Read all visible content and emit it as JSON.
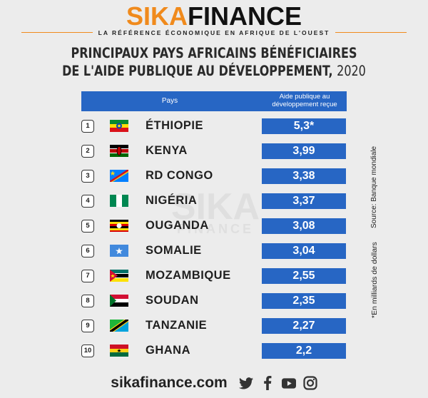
{
  "brand": {
    "name_part1": "SIKA",
    "name_part2": "FINANCE",
    "tagline": "LA RÉFÉRENCE ÉCONOMIQUE EN AFRIQUE DE L'OUEST",
    "accent_color": "#f08a1c"
  },
  "title_line1": "PRINCIPAUX PAYS AFRICAINS BÉNÉFICIAIRES",
  "title_line2": "DE L'AIDE PUBLIQUE AU DÉVELOPPEMENT,",
  "title_year": "2020",
  "table_header": {
    "pays": "Pays",
    "aide_line1": "Aide publique au",
    "aide_line2": "développement reçue"
  },
  "watermark": {
    "main": "SIKA",
    "sub": "FINANCE"
  },
  "source": "Source: Banque mondiale",
  "note": "*En milliards de dollars",
  "footer": {
    "site": "sikafinance.com",
    "icons": [
      "twitter-icon",
      "facebook-icon",
      "youtube-icon",
      "instagram-icon"
    ]
  },
  "colors": {
    "bar": "#2766c4",
    "background": "#ececec"
  },
  "chart_data": {
    "type": "table",
    "title": "PRINCIPAUX PAYS AFRICAINS BÉNÉFICIAIRES DE L'AIDE PUBLIQUE AU DÉVELOPPEMENT, 2020",
    "columns": [
      "Pays",
      "Aide publique au développement reçue"
    ],
    "rows": [
      {
        "rank": "1",
        "country": "ÉTHIOPIE",
        "label": "5,3*",
        "value": 5.3,
        "flag": "ethiopia"
      },
      {
        "rank": "2",
        "country": "KENYA",
        "label": "3,99",
        "value": 3.99,
        "flag": "kenya"
      },
      {
        "rank": "3",
        "country": "RD CONGO",
        "label": "3,38",
        "value": 3.38,
        "flag": "drc"
      },
      {
        "rank": "4",
        "country": "NIGÉRIA",
        "label": "3,37",
        "value": 3.37,
        "flag": "nigeria"
      },
      {
        "rank": "5",
        "country": "OUGANDA",
        "label": "3,08",
        "value": 3.08,
        "flag": "uganda"
      },
      {
        "rank": "6",
        "country": "SOMALIE",
        "label": "3,04",
        "value": 3.04,
        "flag": "somalia"
      },
      {
        "rank": "7",
        "country": "MOZAMBIQUE",
        "label": "2,55",
        "value": 2.55,
        "flag": "mozambique"
      },
      {
        "rank": "8",
        "country": "SOUDAN",
        "label": "2,35",
        "value": 2.35,
        "flag": "sudan"
      },
      {
        "rank": "9",
        "country": "TANZANIE",
        "label": "2,27",
        "value": 2.27,
        "flag": "tanzania"
      },
      {
        "rank": "10",
        "country": "GHANA",
        "label": "2,2",
        "value": 2.2,
        "flag": "ghana"
      }
    ]
  }
}
